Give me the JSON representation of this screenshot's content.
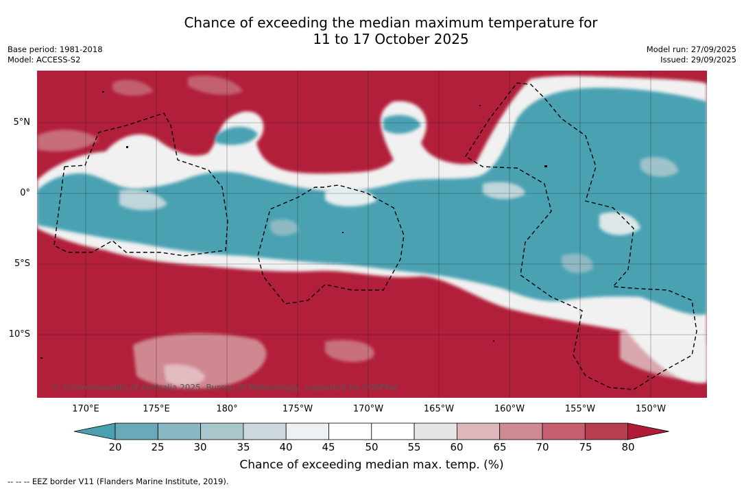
{
  "title": {
    "line1": "Chance of exceeding the median maximum temperature for",
    "line2": "11 to 17 October 2025"
  },
  "meta_left": {
    "base_period": "Base period: 1981-2018",
    "model": "Model: ACCESS-S2"
  },
  "meta_right": {
    "model_run": "Model run: 27/09/2025",
    "issued": "Issued: 29/09/2025"
  },
  "map": {
    "copyright": "© Commonwealth of Australia 2025, Bureau of Meteorology, supported by COSPPac",
    "lat_labels": [
      "5°N",
      "0°",
      "5°S",
      "10°S"
    ],
    "lon_labels": [
      "170°E",
      "175°E",
      "180°",
      "175°W",
      "170°W",
      "165°W",
      "160°W",
      "155°W",
      "150°W"
    ],
    "colors": {
      "warm": "#b21f3a",
      "cool": "#49a1b2",
      "neutral": "#ffffff"
    }
  },
  "colorbar": {
    "ticks": [
      "20",
      "25",
      "30",
      "35",
      "40",
      "45",
      "50",
      "55",
      "60",
      "65",
      "70",
      "75",
      "80"
    ],
    "colors": [
      "#4a9fb0",
      "#69a9b8",
      "#89b7c3",
      "#a9c6cd",
      "#cdd9dc",
      "#edf1f3",
      "#ffffff",
      "#ffffff",
      "#e6e6e6",
      "#dfb6bb",
      "#d08a93",
      "#c55f70",
      "#b73d50",
      "#b11b38"
    ],
    "label": "Chance of exceeding median max. temp. (%)"
  },
  "footer": {
    "legend": "--  --  -- EEZ border V11 (Flanders Marine Institute, 2019)."
  }
}
